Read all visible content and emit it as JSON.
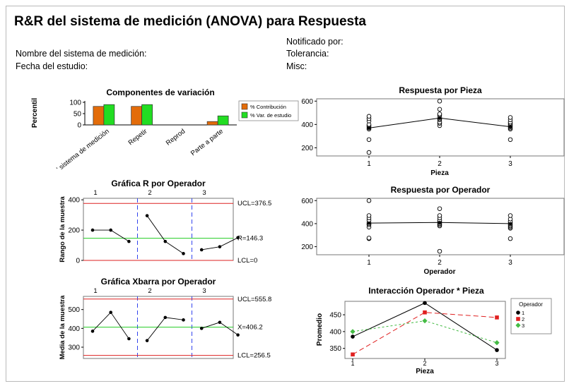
{
  "header": {
    "title": "R&R del sistema de medición  (ANOVA) para Respuesta",
    "notified_by": "Notificado por:",
    "tolerance": "Tolerancia:",
    "misc": "Misc:",
    "system_name": "Nombre del sistema de medición:",
    "study_date": "Fecha del estudio:"
  },
  "chart_data": [
    {
      "type": "bar",
      "title": "Componentes de variación",
      "ylabel": "Percentil",
      "ylim": [
        0,
        100
      ],
      "yticks": [
        "0",
        "50",
        "100"
      ],
      "categories": [
        "' sistema de medición",
        "Repetir",
        "Reprod",
        "Parte a parte"
      ],
      "series": [
        {
          "name": "% Contribución",
          "color": "#e36c0a",
          "values": [
            82,
            82,
            0,
            15
          ]
        },
        {
          "name": "% Var. de estudio",
          "color": "#22dd22",
          "values": [
            90,
            90,
            0,
            40
          ]
        }
      ],
      "legend": "right"
    },
    {
      "type": "scatter",
      "title": "Respuesta por Pieza",
      "xlabel": "Pieza",
      "ylim": [
        130,
        620
      ],
      "yticks": [
        "200",
        "400",
        "600"
      ],
      "xticks": [
        "1",
        "2",
        "3"
      ],
      "points": {
        "1": [
          160,
          270,
          360,
          370,
          380,
          390,
          400,
          430,
          450,
          470
        ],
        "2": [
          390,
          410,
          420,
          440,
          450,
          460,
          480,
          490,
          530,
          600
        ],
        "3": [
          270,
          360,
          370,
          380,
          390,
          400,
          410,
          420,
          440,
          460
        ]
      },
      "means": [
        370,
        455,
        380
      ]
    },
    {
      "type": "line",
      "title": "Gráfica R por Operador",
      "ylabel": "Rango de la muestra",
      "ylim": [
        0,
        410
      ],
      "yticks": [
        "0",
        "200",
        "400"
      ],
      "groups": [
        "1",
        "2",
        "3"
      ],
      "values": [
        200,
        200,
        125,
        295,
        125,
        45,
        70,
        90,
        150
      ],
      "ucl": 376.5,
      "center": 146.3,
      "lcl": 0,
      "ucl_label": "UCL=376.5",
      "center_label": "R=146.3",
      "lcl_label": "LCL=0"
    },
    {
      "type": "scatter",
      "title": "Respuesta por Operador",
      "xlabel": "Operador",
      "ylim": [
        130,
        620
      ],
      "yticks": [
        "200",
        "400",
        "600"
      ],
      "xticks": [
        "1",
        "2",
        "3"
      ],
      "points": {
        "1": [
          270,
          275,
          370,
          390,
          400,
          410,
          430,
          450,
          470,
          600
        ],
        "2": [
          160,
          380,
          390,
          400,
          410,
          420,
          430,
          450,
          470,
          530
        ],
        "3": [
          270,
          360,
          370,
          380,
          390,
          400,
          410,
          420,
          440,
          470
        ]
      },
      "means": [
        405,
        410,
        400
      ]
    },
    {
      "type": "line",
      "title": "Gráfica Xbarra por Operador",
      "ylabel": "Media de la muestra",
      "ylim": [
        240,
        570
      ],
      "yticks": [
        "300",
        "400",
        "500"
      ],
      "groups": [
        "1",
        "2",
        "3"
      ],
      "values": [
        385,
        485,
        345,
        335,
        458,
        445,
        400,
        432,
        365
      ],
      "ucl": 555.8,
      "center": 406.2,
      "lcl": 256.5,
      "ucl_label": "UCL=555.8",
      "center_label": "X=406.2",
      "lcl_label": "LCL=256.5"
    },
    {
      "type": "line",
      "title": "Interacción Operador * Pieza",
      "xlabel": "Pieza",
      "ylabel": "Promedio",
      "ylim": [
        320,
        490
      ],
      "yticks": [
        "350",
        "400",
        "450"
      ],
      "xticks": [
        "1",
        "2",
        "3"
      ],
      "legend_title": "Operador",
      "series": [
        {
          "name": "1",
          "color": "#000000",
          "dash": "",
          "marker": "circle",
          "values": [
            385,
            485,
            345
          ]
        },
        {
          "name": "2",
          "color": "#e02020",
          "dash": "7,4",
          "marker": "square",
          "values": [
            332,
            457,
            442
          ]
        },
        {
          "name": "3",
          "color": "#44bb44",
          "dash": "3,3",
          "marker": "diamond",
          "values": [
            400,
            432,
            367
          ]
        }
      ]
    }
  ]
}
